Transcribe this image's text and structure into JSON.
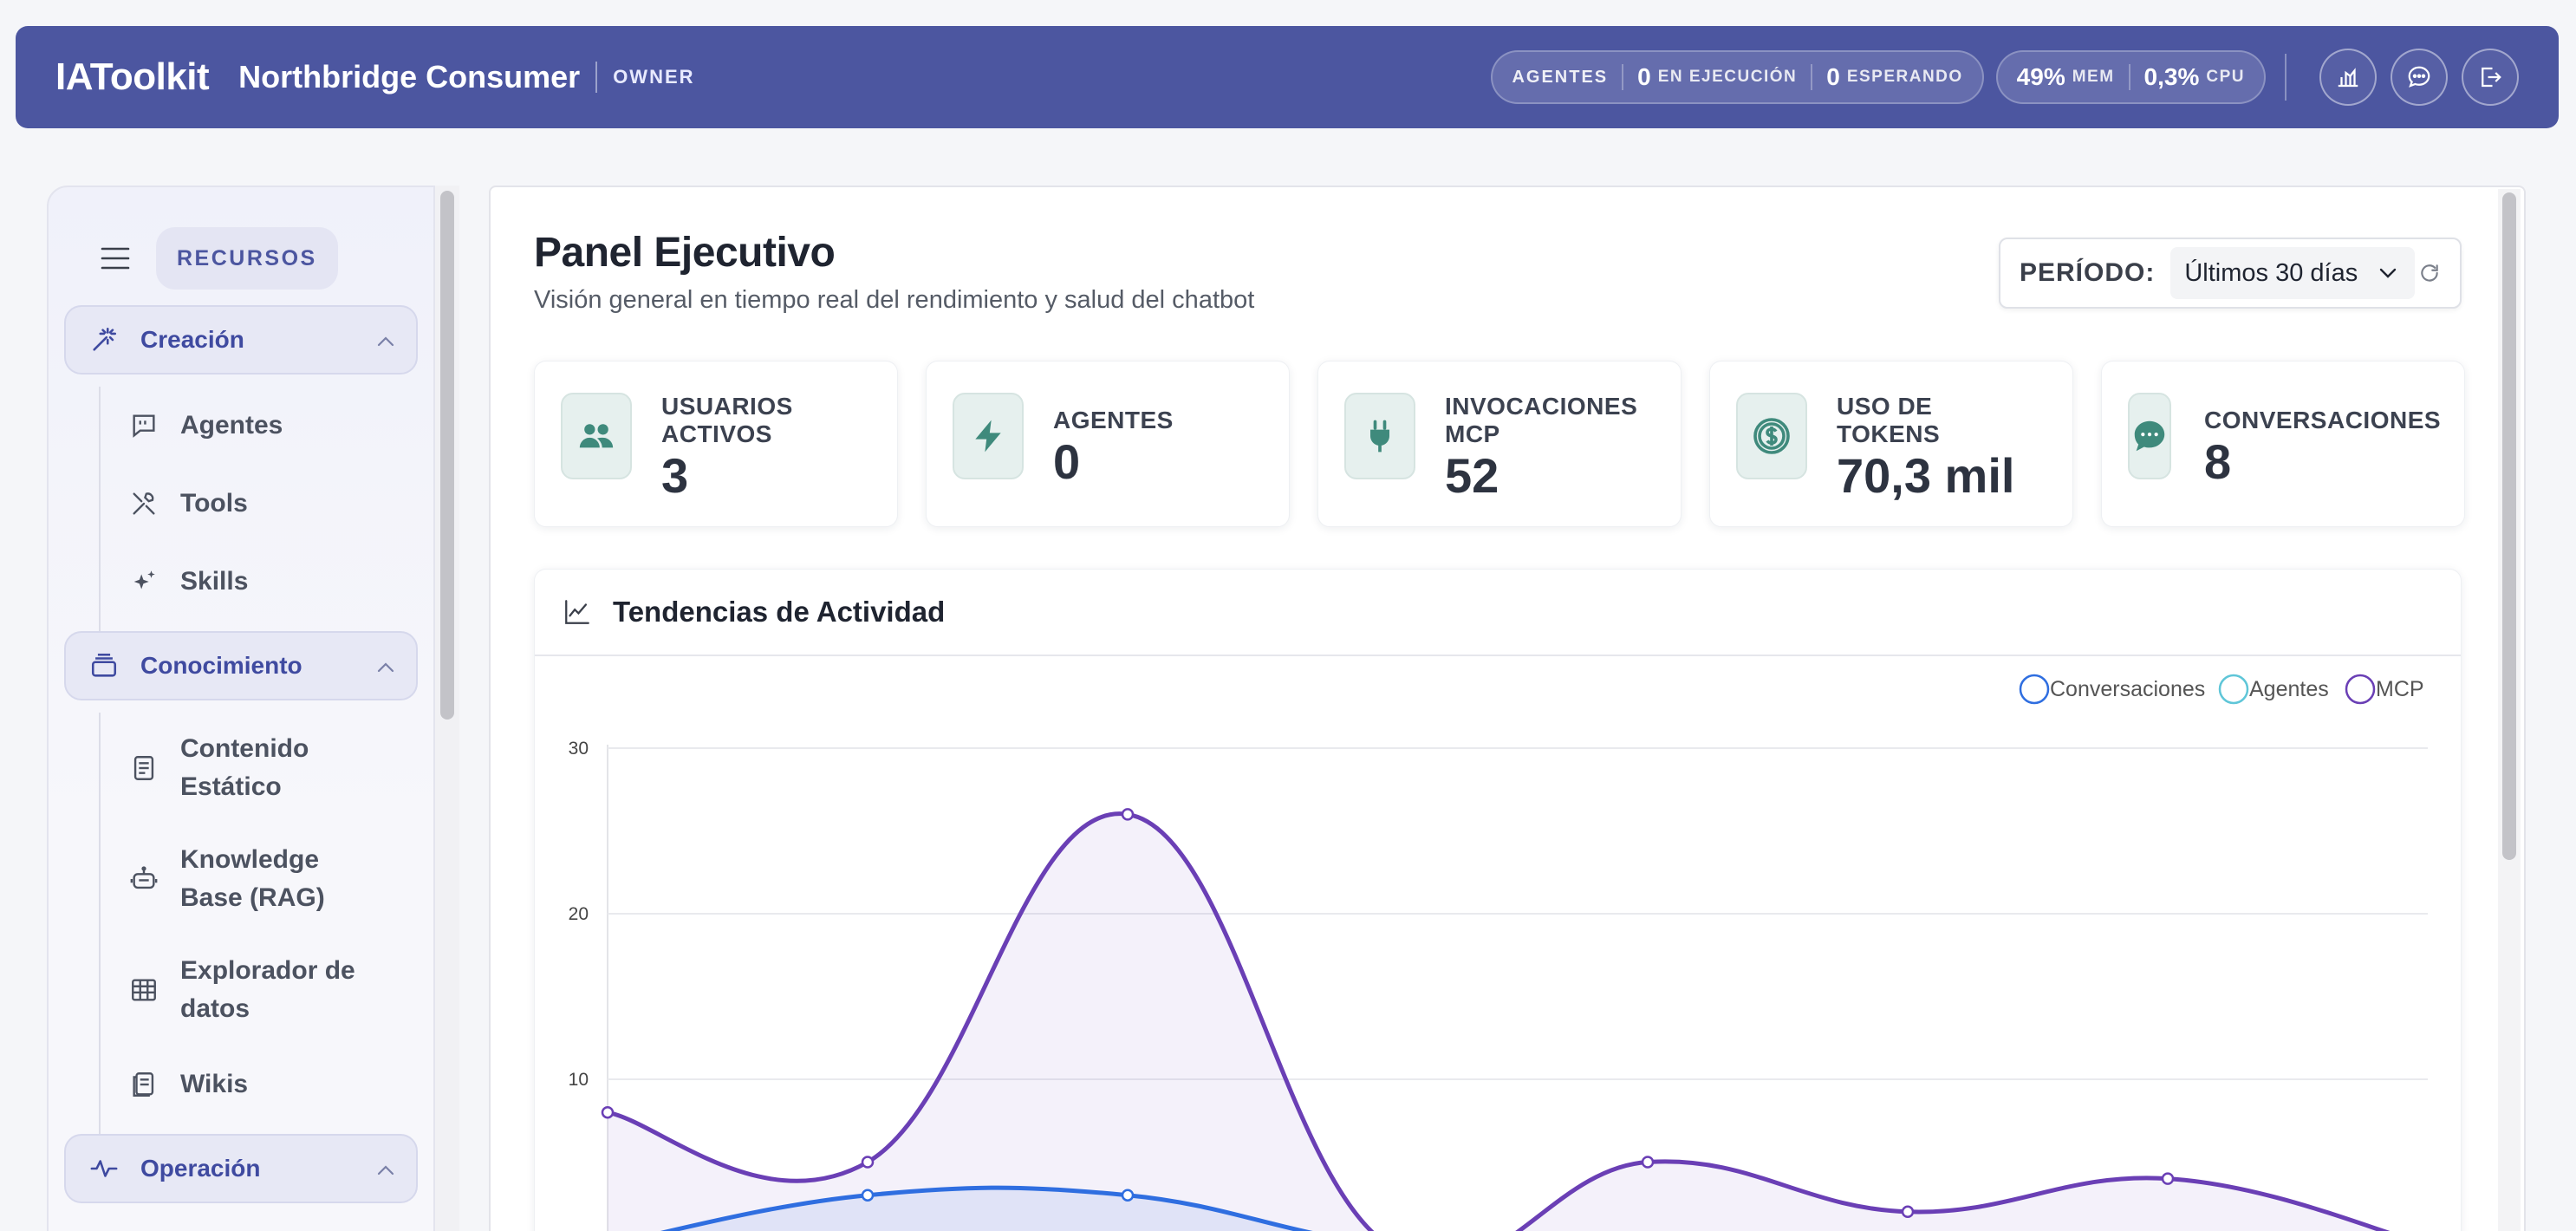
{
  "topbar": {
    "brand": "IAToolkit",
    "company": "Northbridge Consumer",
    "role": "OWNER",
    "agents_label": "AGENTES",
    "running_count": "0",
    "running_label": "EN EJECUCIÓN",
    "waiting_count": "0",
    "waiting_label": "ESPERANDO",
    "mem_value": "49%",
    "mem_label": "MEM",
    "cpu_value": "0,3%",
    "cpu_label": "CPU",
    "icons": [
      "dashboard-icon",
      "chat-icon",
      "logout-icon"
    ]
  },
  "sidebar": {
    "resources_label": "RECURSOS",
    "sections": [
      {
        "label": "Creación",
        "icon": "magic-wand-icon",
        "items": [
          {
            "label": "Agentes",
            "icon": "agent-chat-icon"
          },
          {
            "label": "Tools",
            "icon": "tools-icon"
          },
          {
            "label": "Skills",
            "icon": "sparkles-icon"
          }
        ]
      },
      {
        "label": "Conocimiento",
        "icon": "stack-icon",
        "items": [
          {
            "label": "Contenido Estático",
            "icon": "document-icon"
          },
          {
            "label": "Knowledge Base (RAG)",
            "icon": "robot-icon"
          },
          {
            "label": "Explorador de datos",
            "icon": "table-icon"
          },
          {
            "label": "Wikis",
            "icon": "wiki-icon"
          }
        ]
      },
      {
        "label": "Operación",
        "icon": "pulse-icon",
        "items": []
      }
    ]
  },
  "main": {
    "title": "Panel Ejecutivo",
    "subtitle": "Visión general en tiempo real del rendimiento y salud del chatbot",
    "period_label": "PERÍODO:",
    "period_value": "Últimos 30 días",
    "kpis": [
      {
        "label_1": "USUARIOS",
        "label_2": "ACTIVOS",
        "value": "3",
        "icon": "users-icon"
      },
      {
        "label_1": "AGENTES",
        "label_2": "",
        "value": "0",
        "icon": "bolt-icon"
      },
      {
        "label_1": "INVOCACIONES",
        "label_2": "MCP",
        "value": "52",
        "icon": "plug-icon"
      },
      {
        "label_1": "USO DE",
        "label_2": "TOKENS",
        "value": "70,3 mil",
        "icon": "coin-icon"
      },
      {
        "label_1": "CONVERSACIONES",
        "label_2": "",
        "value": "8",
        "icon": "chat-bubble-icon"
      }
    ],
    "trend_title": "Tendencias de Actividad"
  },
  "colors": {
    "header": "#4c56a0",
    "accent": "#3f4aa0",
    "kpi_icon": "#3f8a7c",
    "conversaciones": "#2f6ee0",
    "agentes": "#5fc6d8",
    "mcp": "#6a3fb5"
  },
  "chart_data": {
    "type": "line",
    "title": "Tendencias de Actividad",
    "ylim": [
      0,
      30
    ],
    "yticks": [
      10,
      20,
      30
    ],
    "grid": true,
    "legend_position": "top-right",
    "series": [
      {
        "name": "Conversaciones",
        "color": "#2f6ee0",
        "values": [
          0,
          3,
          3,
          0,
          0,
          0,
          0,
          0
        ]
      },
      {
        "name": "Agentes",
        "color": "#5fc6d8",
        "values": []
      },
      {
        "name": "MCP",
        "color": "#6a3fb5",
        "values": [
          8,
          5,
          26,
          0,
          5,
          2,
          4,
          0
        ]
      }
    ]
  }
}
